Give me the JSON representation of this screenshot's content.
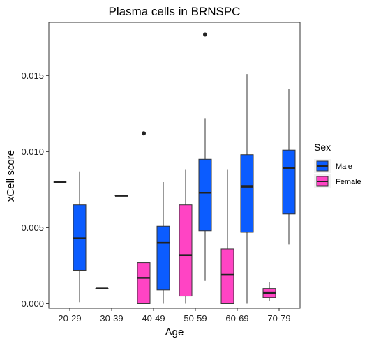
{
  "chart_data": {
    "type": "boxplot",
    "title": "Plasma cells in BRNSPC",
    "xlabel": "Age",
    "ylabel": "xCell score",
    "categories": [
      "20-29",
      "30-39",
      "40-49",
      "50-59",
      "60-69",
      "70-79"
    ],
    "ylim": [
      -0.0003,
      0.0185
    ],
    "yticks": [
      0.0,
      0.005,
      0.01,
      0.015
    ],
    "ytick_labels": [
      "0.000",
      "0.005",
      "0.010",
      "0.015"
    ],
    "legend": {
      "title": "Sex",
      "placement": "right",
      "entries": [
        {
          "name": "Male",
          "color": "#0b5cff"
        },
        {
          "name": "Female",
          "color": "#ff44c4"
        }
      ]
    },
    "series": [
      {
        "name": "Male",
        "color": "#0b5cff",
        "boxes": [
          {
            "category": "20-29",
            "min": 0.0001,
            "q1": 0.0022,
            "median": 0.0043,
            "q3": 0.0065,
            "max": 0.0087,
            "outliers": []
          },
          {
            "category": "30-39",
            "min": 0.0071,
            "q1": 0.0071,
            "median": 0.0071,
            "q3": 0.0071,
            "max": 0.0071,
            "outliers": []
          },
          {
            "category": "40-49",
            "min": 0.0,
            "q1": 0.0009,
            "median": 0.004,
            "q3": 0.0051,
            "max": 0.008,
            "outliers": []
          },
          {
            "category": "50-59",
            "min": 0.0015,
            "q1": 0.0048,
            "median": 0.0073,
            "q3": 0.0095,
            "max": 0.0122,
            "outliers": [
              0.0177
            ]
          },
          {
            "category": "60-69",
            "min": 0.0,
            "q1": 0.0047,
            "median": 0.0077,
            "q3": 0.0098,
            "max": 0.0151,
            "outliers": []
          },
          {
            "category": "70-79",
            "min": 0.0039,
            "q1": 0.0059,
            "median": 0.0089,
            "q3": 0.0101,
            "max": 0.0141,
            "outliers": []
          }
        ]
      },
      {
        "name": "Female",
        "color": "#ff44c4",
        "boxes": [
          {
            "category": "20-29",
            "min": 0.008,
            "q1": 0.008,
            "median": 0.008,
            "q3": 0.008,
            "max": 0.008,
            "outliers": []
          },
          {
            "category": "30-39",
            "min": 0.001,
            "q1": 0.001,
            "median": 0.001,
            "q3": 0.001,
            "max": 0.001,
            "outliers": []
          },
          {
            "category": "40-49",
            "min": 0.0,
            "q1": 0.0,
            "median": 0.0017,
            "q3": 0.0027,
            "max": 0.0027,
            "outliers": [
              0.0112
            ]
          },
          {
            "category": "50-59",
            "min": 0.0,
            "q1": 0.0005,
            "median": 0.0032,
            "q3": 0.0065,
            "max": 0.0088,
            "outliers": []
          },
          {
            "category": "60-69",
            "min": 0.0,
            "q1": 0.0,
            "median": 0.0019,
            "q3": 0.0036,
            "max": 0.0088,
            "outliers": []
          },
          {
            "category": "70-79",
            "min": 0.0002,
            "q1": 0.0004,
            "median": 0.0007,
            "q3": 0.001,
            "max": 0.0014,
            "outliers": []
          }
        ]
      }
    ]
  }
}
